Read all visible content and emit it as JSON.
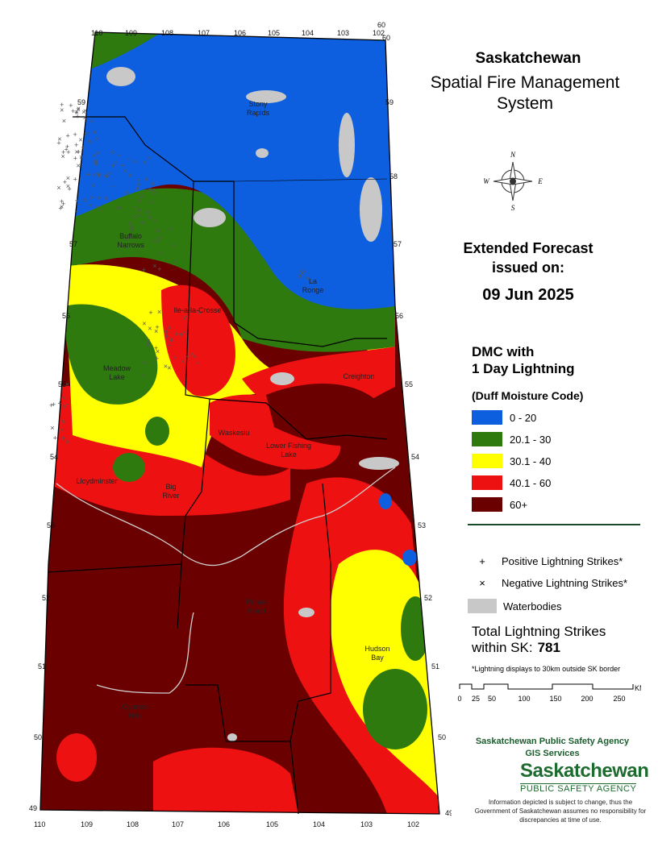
{
  "title": {
    "line1": "Saskatchewan",
    "line2": "Spatial Fire Management",
    "line3": "System"
  },
  "forecast": {
    "line1": "Extended Forecast",
    "line2": "issued on:",
    "date": "09 Jun 2025"
  },
  "legend": {
    "title_line1": "DMC with",
    "title_line2": "1 Day Lightning",
    "subtitle": "(Duff Moisture Code)",
    "classes": [
      {
        "label": "0 - 20",
        "color": "#0d5fe0"
      },
      {
        "label": "20.1 - 30",
        "color": "#2e7a0f"
      },
      {
        "label": "30.1 - 40",
        "color": "#ffff00"
      },
      {
        "label": "40.1 - 60",
        "color": "#ee1111"
      },
      {
        "label": "60+",
        "color": "#6b0000"
      }
    ],
    "symbols": {
      "positive": {
        "glyph": "+",
        "label": "Positive Lightning Strikes*"
      },
      "negative": {
        "glyph": "×",
        "label": "Negative Lightning Strikes*"
      },
      "water": {
        "label": "Waterbodies",
        "color": "#c8c8c8"
      }
    }
  },
  "lightning": {
    "total_label_line1": "Total Lightning Strikes",
    "total_label_line2": "within SK:",
    "total_value": "781",
    "note": "*Lightning displays to 30km outside SK border"
  },
  "scale_bar": {
    "ticks": [
      "0",
      "25",
      "50",
      "100",
      "150",
      "200",
      "250"
    ],
    "unit": "KM"
  },
  "compass": {
    "n": "N",
    "s": "S",
    "e": "E",
    "w": "W"
  },
  "agency": {
    "line1": "Saskatchewan Public Safety Agency",
    "line2": "GIS  Services",
    "logo_main": "Saskatchewan",
    "logo_sub": "PUBLIC SAFETY AGENCY"
  },
  "disclaimer": "Information depicted is subject to change, thus the Government of Saskatchewan assumes no responsibility for discrepancies at time of use.",
  "grid": {
    "top_longitudes": [
      "110",
      "109",
      "108",
      "107",
      "106",
      "105",
      "104",
      "103",
      "102"
    ],
    "bottom_longitudes": [
      "110",
      "109",
      "108",
      "107",
      "106",
      "105",
      "104",
      "103",
      "102"
    ],
    "latitudes": [
      "59",
      "58",
      "57",
      "56",
      "55",
      "54",
      "53",
      "52",
      "51",
      "50",
      "49"
    ],
    "corner_top": "60",
    "corner_bottom": "49"
  },
  "places": [
    "Stony Rapids",
    "Buffalo Narrows",
    "La Ronge",
    "Ile-a-la-Crosse",
    "Meadow Lake",
    "Waskesiu",
    "Lower Fishing Lake",
    "Lloydminster",
    "Big River",
    "Prince Albert",
    "Hudson Bay",
    "Cypress Hills",
    "Creighton"
  ]
}
